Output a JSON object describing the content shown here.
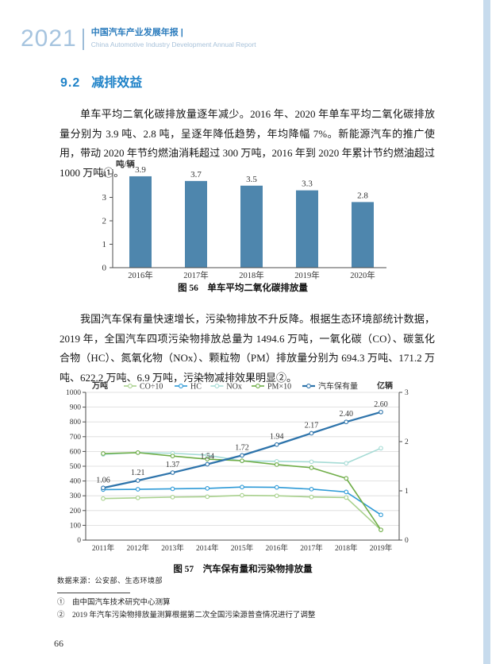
{
  "header": {
    "year": "2021",
    "title_zh": "中国汽车产业发展年报 |",
    "title_en": "China Automotive Industry Development Annual Report"
  },
  "section": {
    "number": "9.2",
    "title": "减排效益"
  },
  "paragraphs": {
    "p1": "单车平均二氧化碳排放量逐年减少。2016 年、2020 年单车平均二氧化碳排放量分别为 3.9 吨、2.8 吨，呈逐年降低趋势，年均降幅 7%。新能源汽车的推广使用，带动 2020 年节约燃油消耗超过 300 万吨，2016 年到 2020 年累计节约燃油超过 1000 万吨①。",
    "p2": "我国汽车保有量快速增长，污染物排放不升反降。根据生态环境部统计数据，2019 年，全国汽车四项污染物排放总量为 1494.6 万吨，一氧化碳（CO）、碳氢化合物（HC）、氮氧化物（NOx）、颗粒物（PM）排放量分别为 694.3 万吨、171.2 万吨、622.2 万吨、6.9 万吨，污染物减排效果明显②。"
  },
  "chart_data": [
    {
      "type": "bar",
      "title": "图 56　单车平均二氧化碳排放量",
      "unit_label": "吨/辆",
      "categories": [
        "2016年",
        "2017年",
        "2018年",
        "2019年",
        "2020年"
      ],
      "values": [
        3.9,
        3.7,
        3.5,
        3.3,
        2.8
      ],
      "value_labels": [
        "3.9",
        "3.7",
        "3.5",
        "3.3",
        "2.8"
      ],
      "ylim": [
        0,
        4
      ],
      "yticks": [
        0,
        1,
        2,
        3,
        4
      ],
      "bar_color": "#4e86ad",
      "grid": false,
      "legend_position": "none"
    },
    {
      "type": "line",
      "title": "图 57　汽车保有量和污染物排放量",
      "left_axis": {
        "label": "万吨",
        "min": 0,
        "max": 1000,
        "ticks": [
          0,
          100,
          200,
          300,
          400,
          500,
          600,
          700,
          800,
          900,
          1000
        ]
      },
      "right_axis": {
        "label": "亿辆",
        "min": 0,
        "max": 3,
        "ticks": [
          0,
          1,
          2,
          3
        ]
      },
      "categories": [
        "2011年",
        "2012年",
        "2013年",
        "2014年",
        "2015年",
        "2016年",
        "2017年",
        "2018年",
        "2019年"
      ],
      "grid": true,
      "legend_position": "top",
      "series": [
        {
          "name": "CO÷10",
          "axis": "left",
          "color": "#a9d18e",
          "values": [
            281,
            286,
            291,
            294,
            303,
            300,
            292,
            288,
            69
          ]
        },
        {
          "name": "HC",
          "axis": "left",
          "color": "#2e9ad7",
          "values": [
            342,
            344,
            347,
            350,
            359,
            357,
            345,
            326,
            171
          ]
        },
        {
          "name": "NOx",
          "axis": "left",
          "color": "#a5dbd5",
          "values": [
            580,
            592,
            588,
            575,
            536,
            533,
            530,
            520,
            622
          ]
        },
        {
          "name": "PM×10",
          "axis": "left",
          "color": "#6fad47",
          "values": [
            586,
            592,
            569,
            548,
            537,
            511,
            490,
            418,
            69
          ]
        },
        {
          "name": "汽车保有量",
          "axis": "right",
          "color": "#2e74ab",
          "thick": true,
          "values": [
            1.06,
            1.21,
            1.37,
            1.54,
            1.72,
            1.94,
            2.17,
            2.4,
            2.6
          ],
          "point_labels": [
            "1.06",
            "1.21",
            "1.37",
            "1.54",
            "1.72",
            "1.94",
            "2.17",
            "2.40",
            "2.60"
          ]
        }
      ]
    }
  ],
  "source_note": "数据来源：公安部、生态环境部",
  "footnotes": [
    "①　由中国汽车技术研究中心测算",
    "②　2019 年汽车污染物排放量测算根据第二次全国污染源普查情况进行了调整"
  ],
  "page_number": "66",
  "colors": {
    "accent_blue": "#1e82c8",
    "bar_blue": "#4e86ad",
    "edge_strip": "#c7dbed"
  }
}
